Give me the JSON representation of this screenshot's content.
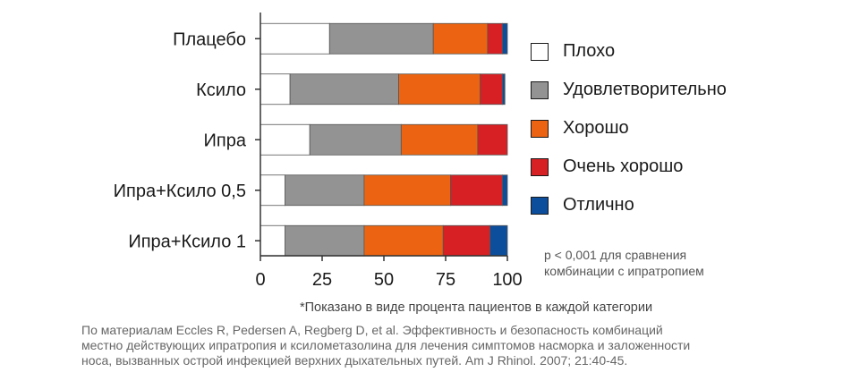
{
  "chart_data": {
    "type": "bar",
    "orientation": "horizontal",
    "stacked": true,
    "categories": [
      "Плацебо",
      "Ксило",
      "Ипра",
      "Ипра+Ксило 0,5",
      "Ипра+Ксило 1"
    ],
    "series": [
      {
        "name": "Плохо",
        "color": "#ffffff",
        "values": [
          28,
          12,
          20,
          10,
          10
        ]
      },
      {
        "name": "Удовлетворительно",
        "color": "#939393",
        "values": [
          42,
          44,
          37,
          32,
          32
        ]
      },
      {
        "name": "Хорошо",
        "color": "#ec6411",
        "values": [
          22,
          33,
          31,
          35,
          32
        ]
      },
      {
        "name": "Очень хорошо",
        "color": "#d62024",
        "values": [
          6,
          9,
          12,
          21,
          19
        ]
      },
      {
        "name": "Отлично",
        "color": "#0c4e9b",
        "values": [
          2,
          1,
          0,
          2,
          7
        ]
      }
    ],
    "xlim": [
      0,
      100
    ],
    "xticks": [
      "0",
      "25",
      "50",
      "75",
      "100"
    ],
    "legend_position": "right",
    "grid": false
  },
  "annotation": "p < 0,001 для сравнения\nкомбинации с ипратропием",
  "footnote": "*Показано в виде процента пациентов в каждой категории",
  "source": "По материалам Eccles R, Pedersen A, Regberg D, et al. Эффективность и безопасность комбинаций\nместно действующих ипратропия и ксилометазолина для лечения симптомов насморка и заложенности\nноса, вызванных острой инфекцией верхних дыхательных путей. Am J Rhinol. 2007; 21:40-45."
}
